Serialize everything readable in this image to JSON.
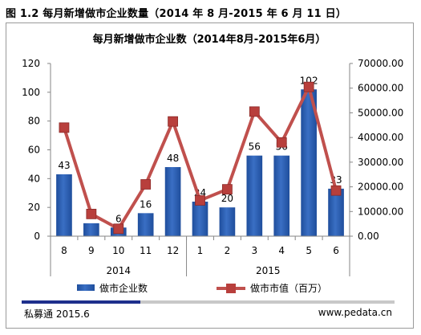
{
  "figure_caption": "图 1.2 每月新增做市企业数量（2014 年 8 月-2015 年 6 月 11 日）",
  "footer": {
    "left": "私募通 2015.6",
    "right": "www.pedata.cn"
  },
  "colors": {
    "bar": "#3a6fc4",
    "bar_dark": "#1f4e9c",
    "line": "#c0504d",
    "marker": "#b83f3c",
    "footer_accent": "#1e2f8c",
    "footer_rule": "#c8c8c8"
  },
  "chart_data": {
    "type": "bar",
    "title": "每月新增做市企业数（2014年8月-2015年6月）",
    "categories": [
      "8",
      "9",
      "10",
      "11",
      "12",
      "1",
      "2",
      "3",
      "4",
      "5",
      "6"
    ],
    "category_groups": [
      {
        "label": "2014",
        "count": 5
      },
      {
        "label": "2015",
        "count": 6
      }
    ],
    "series": [
      {
        "name": "做市企业数",
        "type": "bar",
        "axis": "left",
        "values": [
          43,
          9,
          6,
          16,
          48,
          24,
          20,
          56,
          56,
          102,
          33
        ]
      },
      {
        "name": "做市市值（百万）",
        "type": "line",
        "axis": "right",
        "values": [
          44000,
          9000,
          3000,
          21000,
          46500,
          14500,
          19000,
          50500,
          38000,
          60500,
          18500
        ]
      }
    ],
    "left_axis": {
      "ylim": [
        0,
        120
      ],
      "ticks": [
        "0",
        "20",
        "40",
        "60",
        "80",
        "100",
        "120"
      ]
    },
    "right_axis": {
      "ylim": [
        0,
        70000
      ],
      "ticks": [
        "0.00",
        "10000.00",
        "20000.00",
        "30000.00",
        "40000.00",
        "50000.00",
        "60000.00",
        "70000.00"
      ]
    },
    "grid": false,
    "legend_position": "bottom"
  }
}
